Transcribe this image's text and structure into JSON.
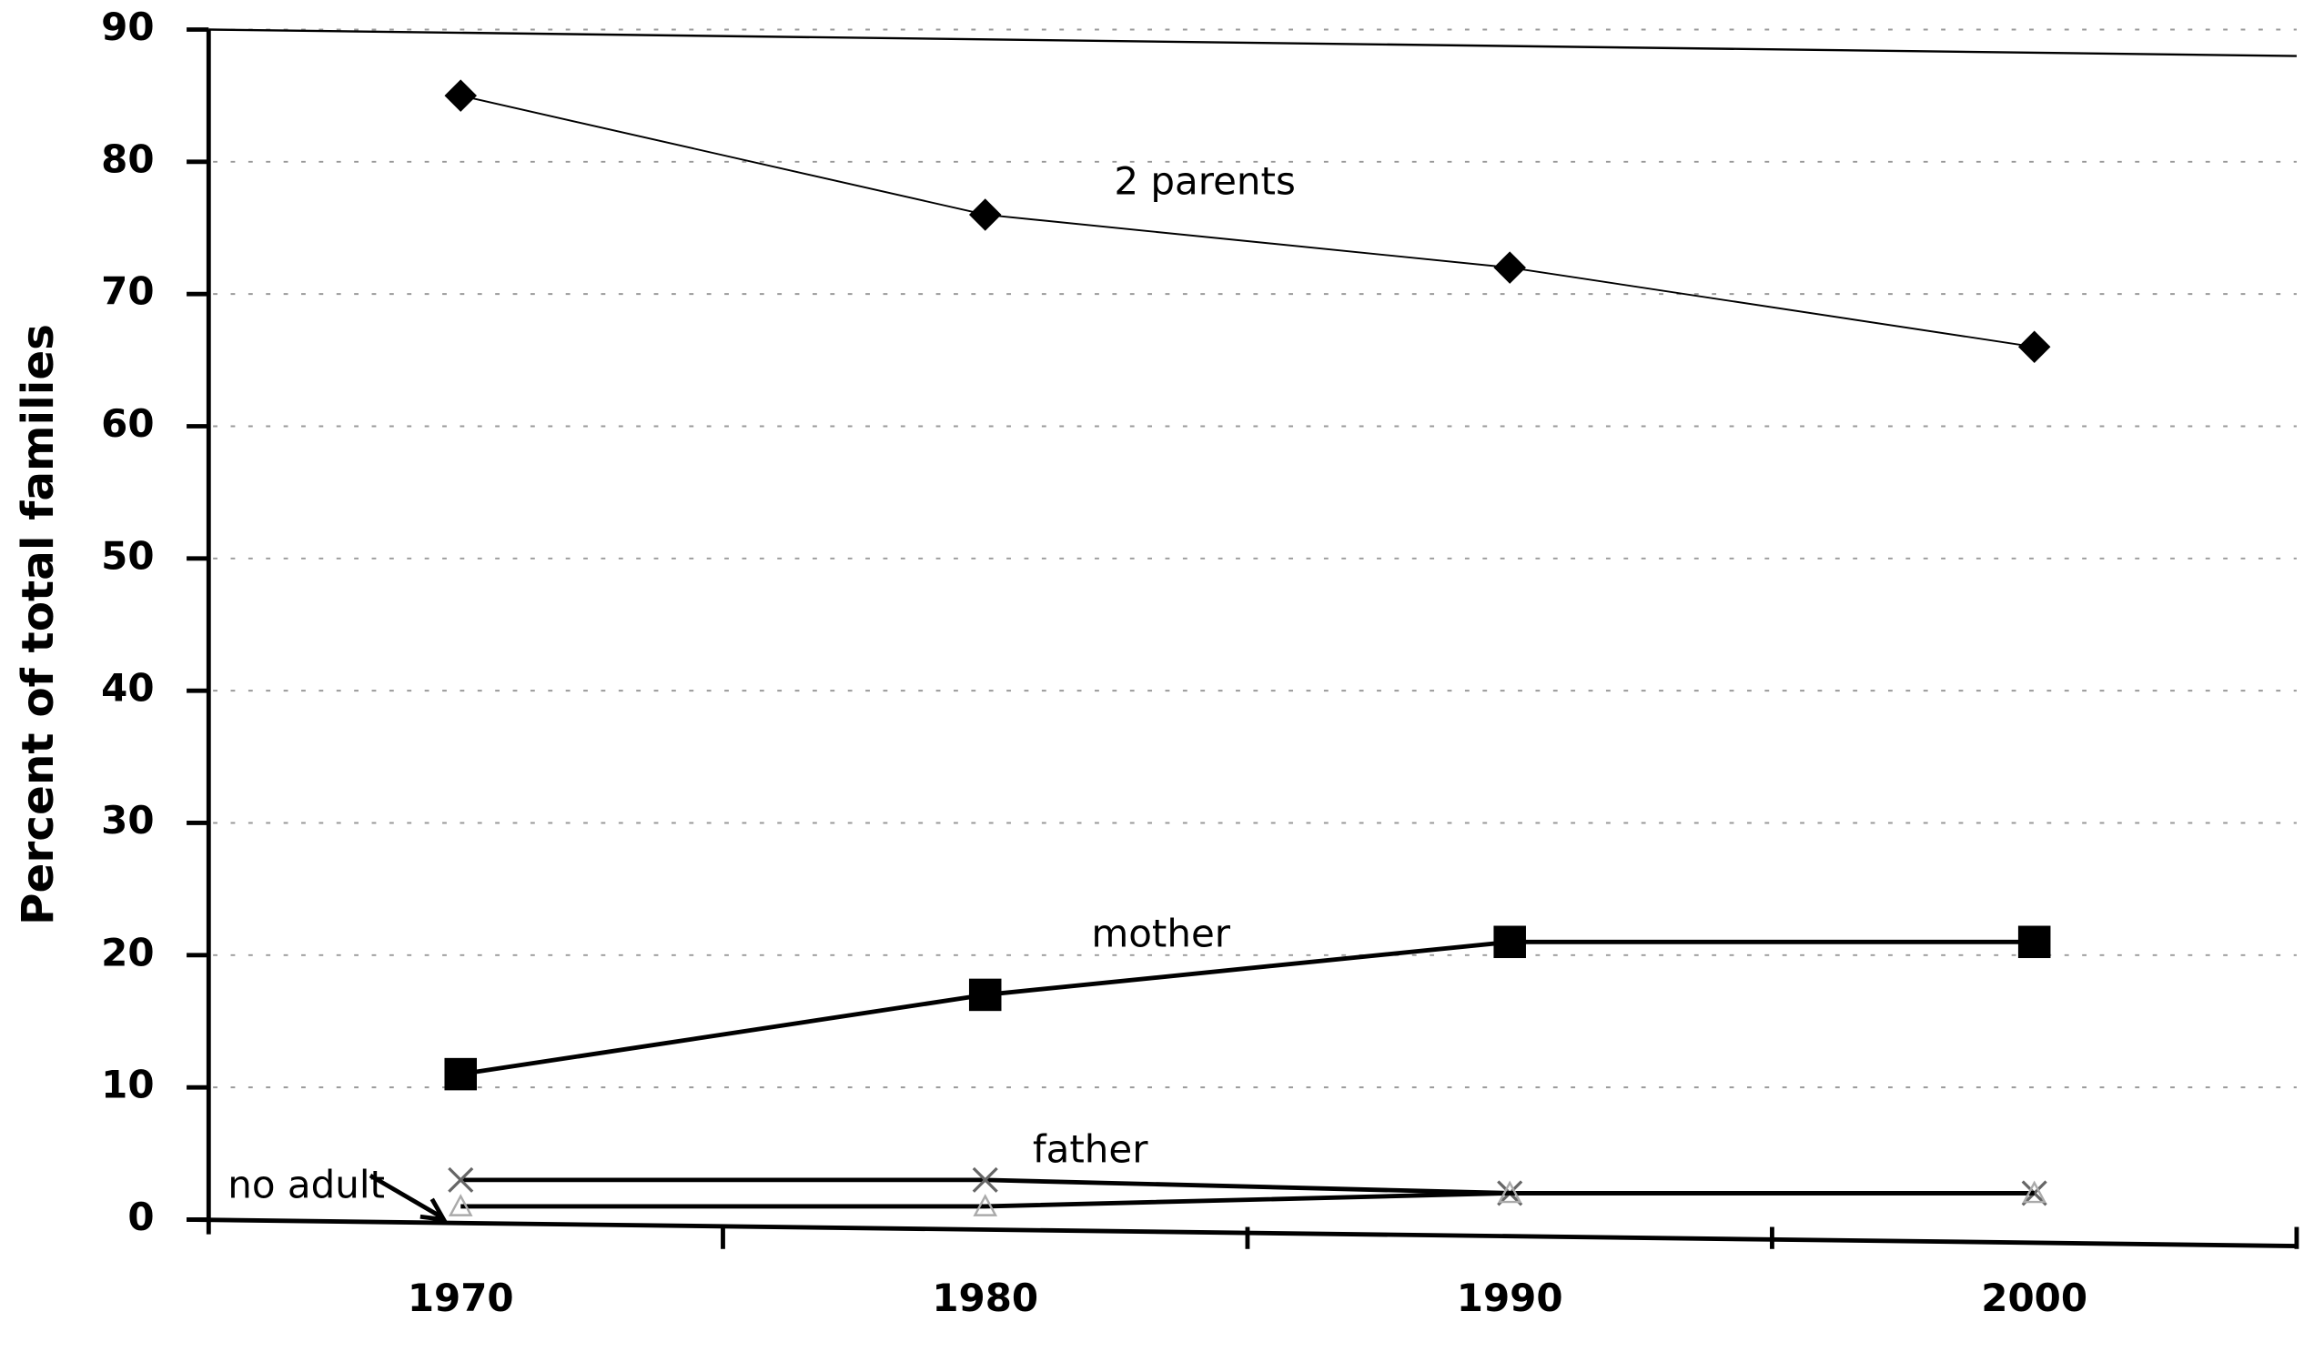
{
  "chart_data": {
    "type": "line",
    "ylabel": "Percent of total families",
    "categories": [
      "1970",
      "1980",
      "1990",
      "2000"
    ],
    "series": [
      {
        "name": "2 parents",
        "color": "#000000",
        "marker": "diamond",
        "values": [
          85,
          76,
          72,
          66
        ]
      },
      {
        "name": "mother",
        "color": "#000000",
        "marker": "square",
        "values": [
          11,
          17,
          21,
          21
        ]
      },
      {
        "name": "father",
        "color": "#000000",
        "marker": "x",
        "values": [
          3,
          3,
          2,
          2
        ]
      },
      {
        "name": "no adult",
        "color": "#000000",
        "marker": "triangle",
        "values": [
          1,
          1,
          2,
          2
        ]
      }
    ],
    "ylim": [
      0,
      90
    ],
    "yticks": [
      0,
      10,
      20,
      30,
      40,
      50,
      60,
      70,
      80,
      90
    ],
    "grid": true
  }
}
